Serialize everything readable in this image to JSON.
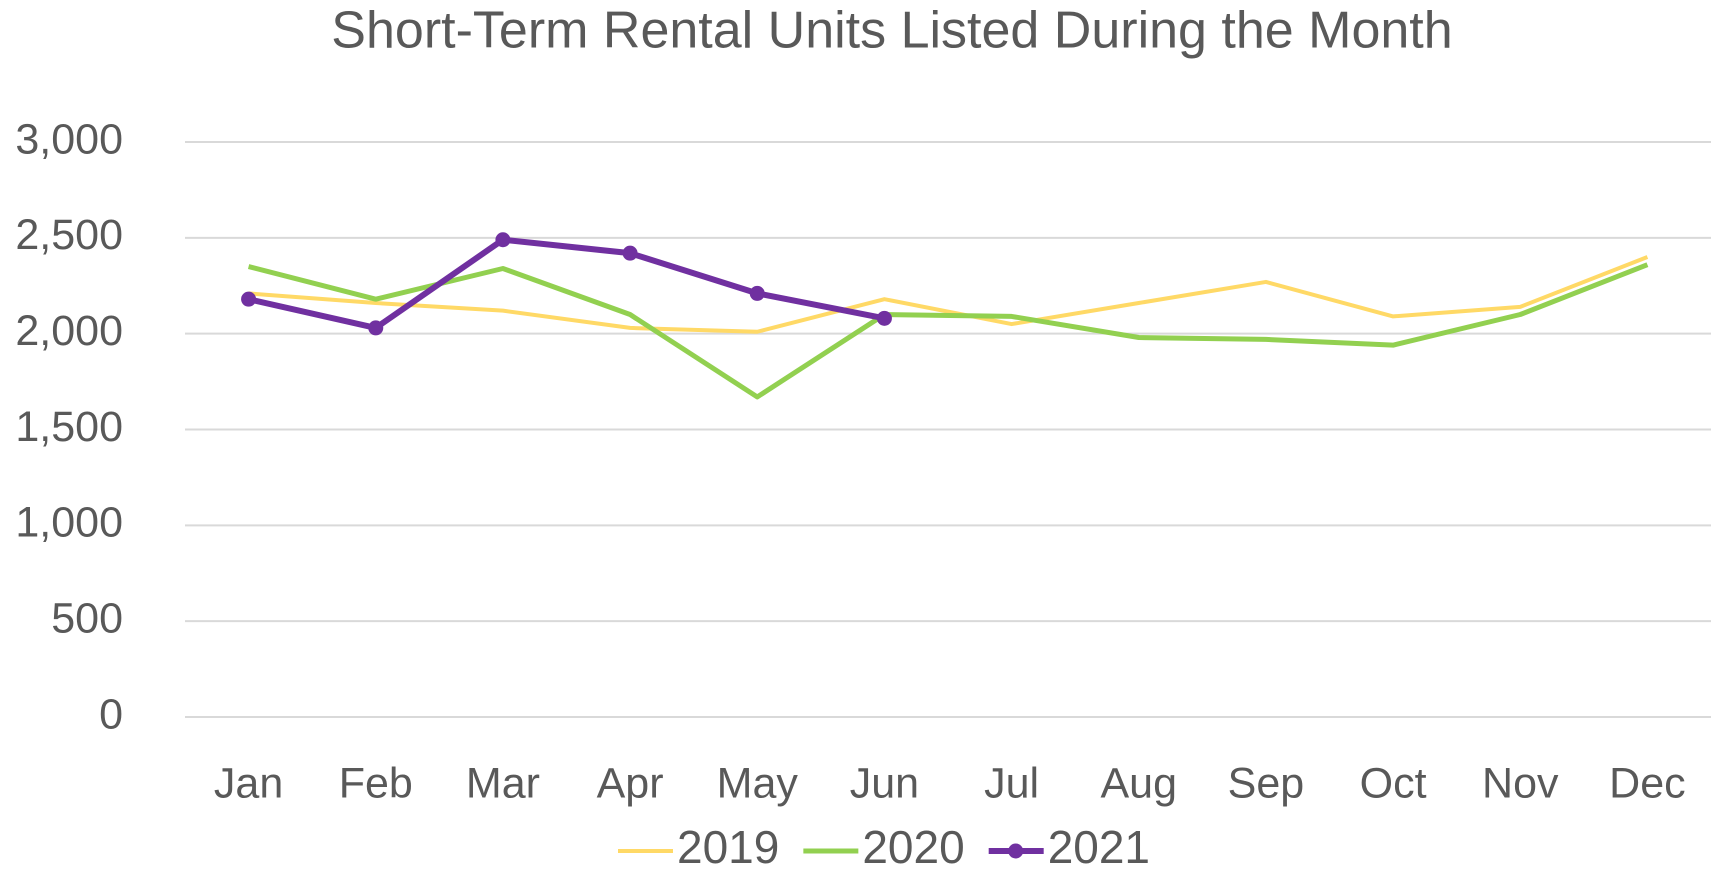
{
  "chart_data": {
    "type": "line",
    "title": "Short-Term Rental Units Listed During the Month",
    "categories": [
      "Jan",
      "Feb",
      "Mar",
      "Apr",
      "May",
      "Jun",
      "Jul",
      "Aug",
      "Sep",
      "Oct",
      "Nov",
      "Dec"
    ],
    "series": [
      {
        "name": "2019",
        "color": "#ffd966",
        "values": [
          2210,
          2160,
          2120,
          2030,
          2010,
          2180,
          2050,
          2160,
          2270,
          2090,
          2140,
          2400
        ]
      },
      {
        "name": "2020",
        "color": "#92d050",
        "values": [
          2350,
          2180,
          2340,
          2100,
          1670,
          2100,
          2090,
          1980,
          1970,
          1940,
          2100,
          2360
        ]
      },
      {
        "name": "2021",
        "color": "#7030a0",
        "marker": true,
        "values": [
          2180,
          2030,
          2490,
          2420,
          2210,
          2080,
          null,
          null,
          null,
          null,
          null,
          null
        ]
      }
    ],
    "ylim": [
      0,
      3000
    ],
    "yticks": [
      0,
      {
        "value": 500,
        "label": "500"
      },
      {
        "value": 1000,
        "label": "1,000"
      },
      {
        "value": 1500,
        "label": "1,500"
      },
      {
        "value": 2000,
        "label": "2,000"
      },
      {
        "value": 2500,
        "label": "2,500"
      },
      {
        "value": 3000,
        "label": "3,000"
      }
    ],
    "grid": true,
    "legend": "bottom"
  }
}
